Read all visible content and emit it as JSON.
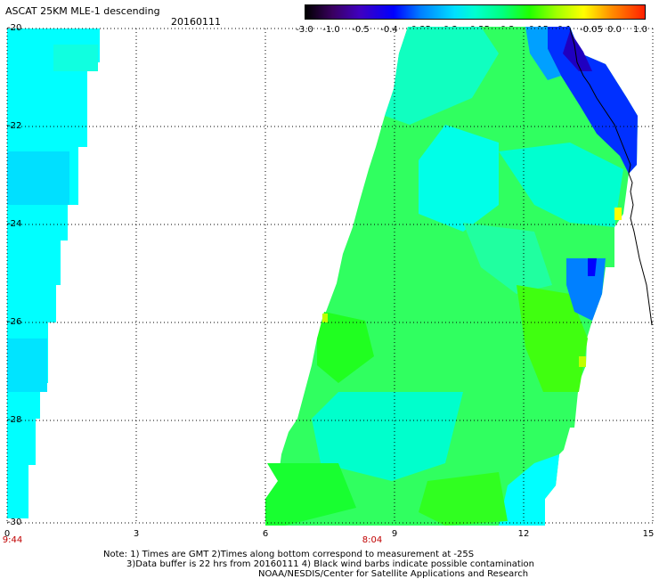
{
  "header": {
    "title": "ASCAT 25KM MLE-1 descending",
    "date": "20160111"
  },
  "colorbar": {
    "tick_labels": [
      "-3.0",
      "-1.0",
      "-0.5",
      "-0.4",
      "-0.35",
      "-0.3",
      "-0.25",
      "-0.2",
      "-0.15",
      "-0.1",
      "-0.05",
      "0.0",
      "1.0"
    ],
    "colors": [
      "#000000",
      "#4000c0",
      "#0000ff",
      "#0080ff",
      "#00e0ff",
      "#00ffd0",
      "#00ff80",
      "#20ff00",
      "#a0ff00",
      "#ffff00",
      "#ff9000",
      "#ff2000"
    ]
  },
  "axes": {
    "y_tick_labels": [
      "-20",
      "-22",
      "-24",
      "-26",
      "-28",
      "-30"
    ],
    "x_tick_labels": [
      "0",
      "3",
      "6",
      "9",
      "12",
      "15"
    ],
    "time_labels": [
      "9:44",
      "8:04"
    ],
    "grid": "dotted"
  },
  "notes": {
    "line1": "Note: 1) Times are GMT 2)Times along bottom correspond to measurement at -25S",
    "line2": "3)Data buffer is 22 hrs from 20160111 4) Black wind barbs indicate possible contamination",
    "line3": "NOAA/NESDIS/Center for Satellite Applications and Research"
  },
  "colors": {
    "background": "#ffffff",
    "cyan": "#00ffff",
    "aqua_green": "#00ffb0",
    "green": "#20ff40",
    "blue": "#0000ff",
    "coastline": "#000000"
  }
}
